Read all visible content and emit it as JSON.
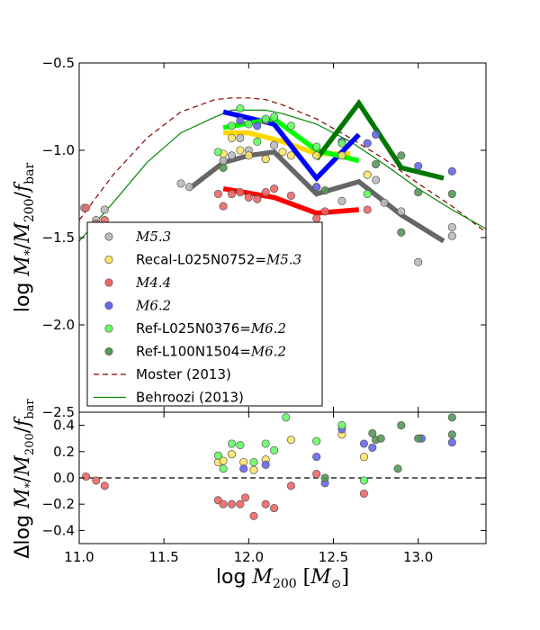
{
  "chart_data": [
    {
      "type": "scatter",
      "panel": "main",
      "xlabel": "log M_200 [M_⊙]",
      "ylabel": "log M_*/M_200/f_bar",
      "xlim": [
        11.0,
        13.4
      ],
      "ylim": [
        -2.5,
        -0.5
      ],
      "yticks": [
        -2.5,
        -2.0,
        -1.5,
        -1.0,
        -0.5
      ],
      "ytick_labels": [
        "−2.5",
        "−2.0",
        "−1.5",
        "−1.0",
        "−0.5"
      ],
      "legend_location": "lower-left",
      "series": [
        {
          "name": "M5.3",
          "legend": "M5.3",
          "style": "math",
          "marker": "circle",
          "color": "#bbbbbb",
          "x": [
            11.03,
            11.1,
            11.15,
            11.6,
            11.65,
            11.85,
            11.9,
            11.95,
            12.0,
            12.1,
            12.15,
            12.4,
            12.55,
            12.75,
            12.8,
            12.9,
            13.0,
            13.2,
            13.2
          ],
          "y": [
            -1.33,
            -1.4,
            -1.34,
            -1.19,
            -1.21,
            -1.06,
            -1.03,
            -0.93,
            -1.0,
            -1.05,
            -0.97,
            -1.21,
            -1.29,
            -1.17,
            -1.3,
            -1.35,
            -1.64,
            -1.44,
            -1.49
          ]
        },
        {
          "name": "Recal-L025N0752",
          "legend": "Recal-L025N0752=",
          "legend_math": "M5.3",
          "style": "mixed",
          "marker": "circle",
          "color": "#ffe566",
          "x": [
            11.85,
            11.9,
            11.95,
            12.0,
            12.1,
            12.2,
            12.25,
            12.4,
            12.55,
            12.7
          ],
          "y": [
            -1.02,
            -0.93,
            -1.0,
            -1.03,
            -1.05,
            -1.01,
            -1.03,
            -1.03,
            -1.03,
            -1.14
          ]
        },
        {
          "name": "M4.4",
          "legend": "M4.4",
          "style": "math",
          "marker": "circle",
          "color": "#ee6666",
          "x": [
            11.04,
            11.1,
            11.15,
            11.82,
            11.85,
            11.9,
            11.95,
            12.0,
            12.05,
            12.1,
            12.15,
            12.25,
            12.4,
            12.45,
            12.7
          ],
          "y": [
            -1.33,
            -1.42,
            -1.4,
            -1.25,
            -1.32,
            -1.25,
            -1.24,
            -1.27,
            -1.28,
            -1.24,
            -1.22,
            -1.26,
            -1.39,
            -1.35,
            -1.34
          ]
        },
        {
          "name": "M6.2",
          "legend": "M6.2",
          "style": "math",
          "marker": "circle",
          "color": "#6666ee",
          "x": [
            11.95,
            12.05,
            12.1,
            12.4,
            12.55,
            12.7,
            12.75,
            13.0,
            13.2
          ],
          "y": [
            -0.83,
            -0.86,
            -0.83,
            -1.21,
            -0.95,
            -0.96,
            -0.91,
            -1.09,
            -1.12
          ]
        },
        {
          "name": "Ref-L025N0376",
          "legend": "Ref-L025N0376=",
          "legend_math": "M6.2",
          "style": "mixed",
          "marker": "circle",
          "color": "#66ff66",
          "x": [
            11.82,
            11.9,
            11.95,
            12.0,
            12.05,
            12.1,
            12.15,
            12.25,
            12.4,
            12.55,
            12.7
          ],
          "y": [
            -1.01,
            -0.86,
            -0.76,
            -0.85,
            -0.95,
            -0.82,
            -0.81,
            -0.86,
            -0.98,
            -0.96,
            -1.25
          ]
        },
        {
          "name": "Ref-L100N1504",
          "legend": "Ref-L100N1504=",
          "legend_math": "M6.2",
          "style": "mixed",
          "marker": "circle",
          "color": "#559955",
          "x": [
            11.85,
            12.45,
            12.75,
            12.9,
            12.9,
            13.0,
            13.2
          ],
          "y": [
            -1.1,
            -1.23,
            -1.08,
            -1.03,
            -1.47,
            -1.24,
            -1.25
          ]
        }
      ],
      "median_lines": [
        {
          "name": "M5.3 median",
          "color": "#666666",
          "x": [
            11.65,
            11.85,
            12.0,
            12.15,
            12.4,
            12.65,
            12.9,
            13.15
          ],
          "y": [
            -1.22,
            -1.07,
            -1.03,
            -1.01,
            -1.25,
            -1.18,
            -1.37,
            -1.52
          ]
        },
        {
          "name": "Recal median",
          "color": "#ffd700",
          "x": [
            11.85,
            12.0,
            12.2,
            12.4,
            12.6
          ],
          "y": [
            -0.9,
            -0.9,
            -0.95,
            -1.02,
            -1.02
          ]
        },
        {
          "name": "M4.4 median",
          "color": "#ff0000",
          "x": [
            11.85,
            12.15,
            12.4,
            12.65
          ],
          "y": [
            -1.22,
            -1.27,
            -1.36,
            -1.34
          ]
        },
        {
          "name": "M6.2 median",
          "color": "#0000ff",
          "x": [
            11.85,
            12.15,
            12.4,
            12.65
          ],
          "y": [
            -0.78,
            -0.85,
            -1.16,
            -0.91
          ]
        },
        {
          "name": "Ref-L025 median",
          "color": "#00ff00",
          "x": [
            11.85,
            12.15,
            12.4,
            12.65
          ],
          "y": [
            -0.87,
            -0.82,
            -1.0,
            -1.06
          ]
        },
        {
          "name": "Ref-L100 median",
          "color": "#007700",
          "x": [
            12.4,
            12.65,
            12.9,
            13.15
          ],
          "y": [
            -1.05,
            -0.73,
            -1.1,
            -1.16
          ]
        }
      ],
      "reference_lines": [
        {
          "name": "Moster (2013)",
          "legend": "Moster (2013)",
          "color": "#880000",
          "dash": "dashed",
          "x": [
            11.0,
            11.2,
            11.4,
            11.6,
            11.8,
            11.9,
            12.0,
            12.1,
            12.2,
            12.4,
            12.6,
            12.8,
            13.0,
            13.2,
            13.4
          ],
          "y": [
            -1.4,
            -1.14,
            -0.93,
            -0.78,
            -0.71,
            -0.7,
            -0.7,
            -0.71,
            -0.74,
            -0.82,
            -0.93,
            -1.05,
            -1.19,
            -1.32,
            -1.47
          ]
        },
        {
          "name": "Behroozi (2013)",
          "legend": "Behroozi (2013)",
          "color": "#008800",
          "dash": "solid",
          "x": [
            11.0,
            11.2,
            11.4,
            11.6,
            11.8,
            11.9,
            12.0,
            12.1,
            12.2,
            12.4,
            12.6,
            12.8,
            13.0,
            13.2,
            13.4
          ],
          "y": [
            -1.52,
            -1.3,
            -1.07,
            -0.9,
            -0.81,
            -0.77,
            -0.77,
            -0.77,
            -0.79,
            -0.85,
            -0.95,
            -1.08,
            -1.22,
            -1.34,
            -1.45
          ]
        }
      ]
    },
    {
      "type": "scatter",
      "panel": "residual",
      "ylabel": "Δlog M_*/M_200/f_bar",
      "xlim": [
        11.0,
        13.4
      ],
      "ylim": [
        -0.5,
        0.5
      ],
      "xticks": [
        11.0,
        11.5,
        12.0,
        12.5,
        13.0
      ],
      "xtick_labels": [
        "11.0",
        "11.5",
        "12.0",
        "12.5",
        "13.0"
      ],
      "yticks": [
        -0.4,
        -0.2,
        0.0,
        0.2,
        0.4
      ],
      "ytick_labels": [
        "−0.4",
        "−0.2",
        "0.0",
        "0.2",
        "0.4"
      ],
      "zero_line": {
        "y": 0.0,
        "style": "dashed",
        "color": "#000000"
      },
      "series": [
        {
          "name": "Recal-L025N0752",
          "color": "#ffe566",
          "x": [
            11.82,
            11.85,
            11.9,
            11.97,
            12.03,
            12.1,
            12.25,
            12.55,
            12.68
          ],
          "y": [
            0.12,
            0.13,
            0.18,
            0.12,
            0.06,
            0.14,
            0.29,
            0.33,
            0.16
          ]
        },
        {
          "name": "M4.4",
          "color": "#ee6666",
          "x": [
            11.04,
            11.1,
            11.15,
            11.82,
            11.85,
            11.9,
            11.95,
            11.98,
            12.03,
            12.1,
            12.15,
            12.25,
            12.4,
            12.68
          ],
          "y": [
            0.01,
            -0.02,
            -0.06,
            -0.17,
            -0.2,
            -0.2,
            -0.2,
            -0.15,
            -0.29,
            -0.2,
            -0.23,
            -0.06,
            0.03,
            -0.12
          ]
        },
        {
          "name": "M6.2",
          "color": "#6666ee",
          "x": [
            11.97,
            12.1,
            12.4,
            12.45,
            12.55,
            12.68,
            12.73,
            13.02,
            13.2
          ],
          "y": [
            0.07,
            0.1,
            0.16,
            -0.04,
            0.37,
            0.26,
            0.23,
            0.3,
            0.27
          ]
        },
        {
          "name": "Ref-L025N0376",
          "color": "#66ff66",
          "x": [
            11.82,
            11.85,
            11.9,
            11.95,
            12.03,
            12.1,
            12.15,
            12.22,
            12.4,
            12.55,
            12.68
          ],
          "y": [
            0.17,
            0.07,
            0.26,
            0.25,
            0.12,
            0.26,
            0.21,
            0.46,
            0.28,
            0.4,
            -0.02
          ]
        },
        {
          "name": "Ref-L100N1504",
          "color": "#559955",
          "x": [
            12.45,
            12.73,
            12.75,
            12.78,
            12.88,
            12.9,
            13.0,
            13.2,
            13.2
          ],
          "y": [
            0.0,
            0.34,
            0.29,
            0.3,
            0.07,
            0.4,
            0.3,
            0.33,
            0.46
          ]
        }
      ]
    }
  ]
}
